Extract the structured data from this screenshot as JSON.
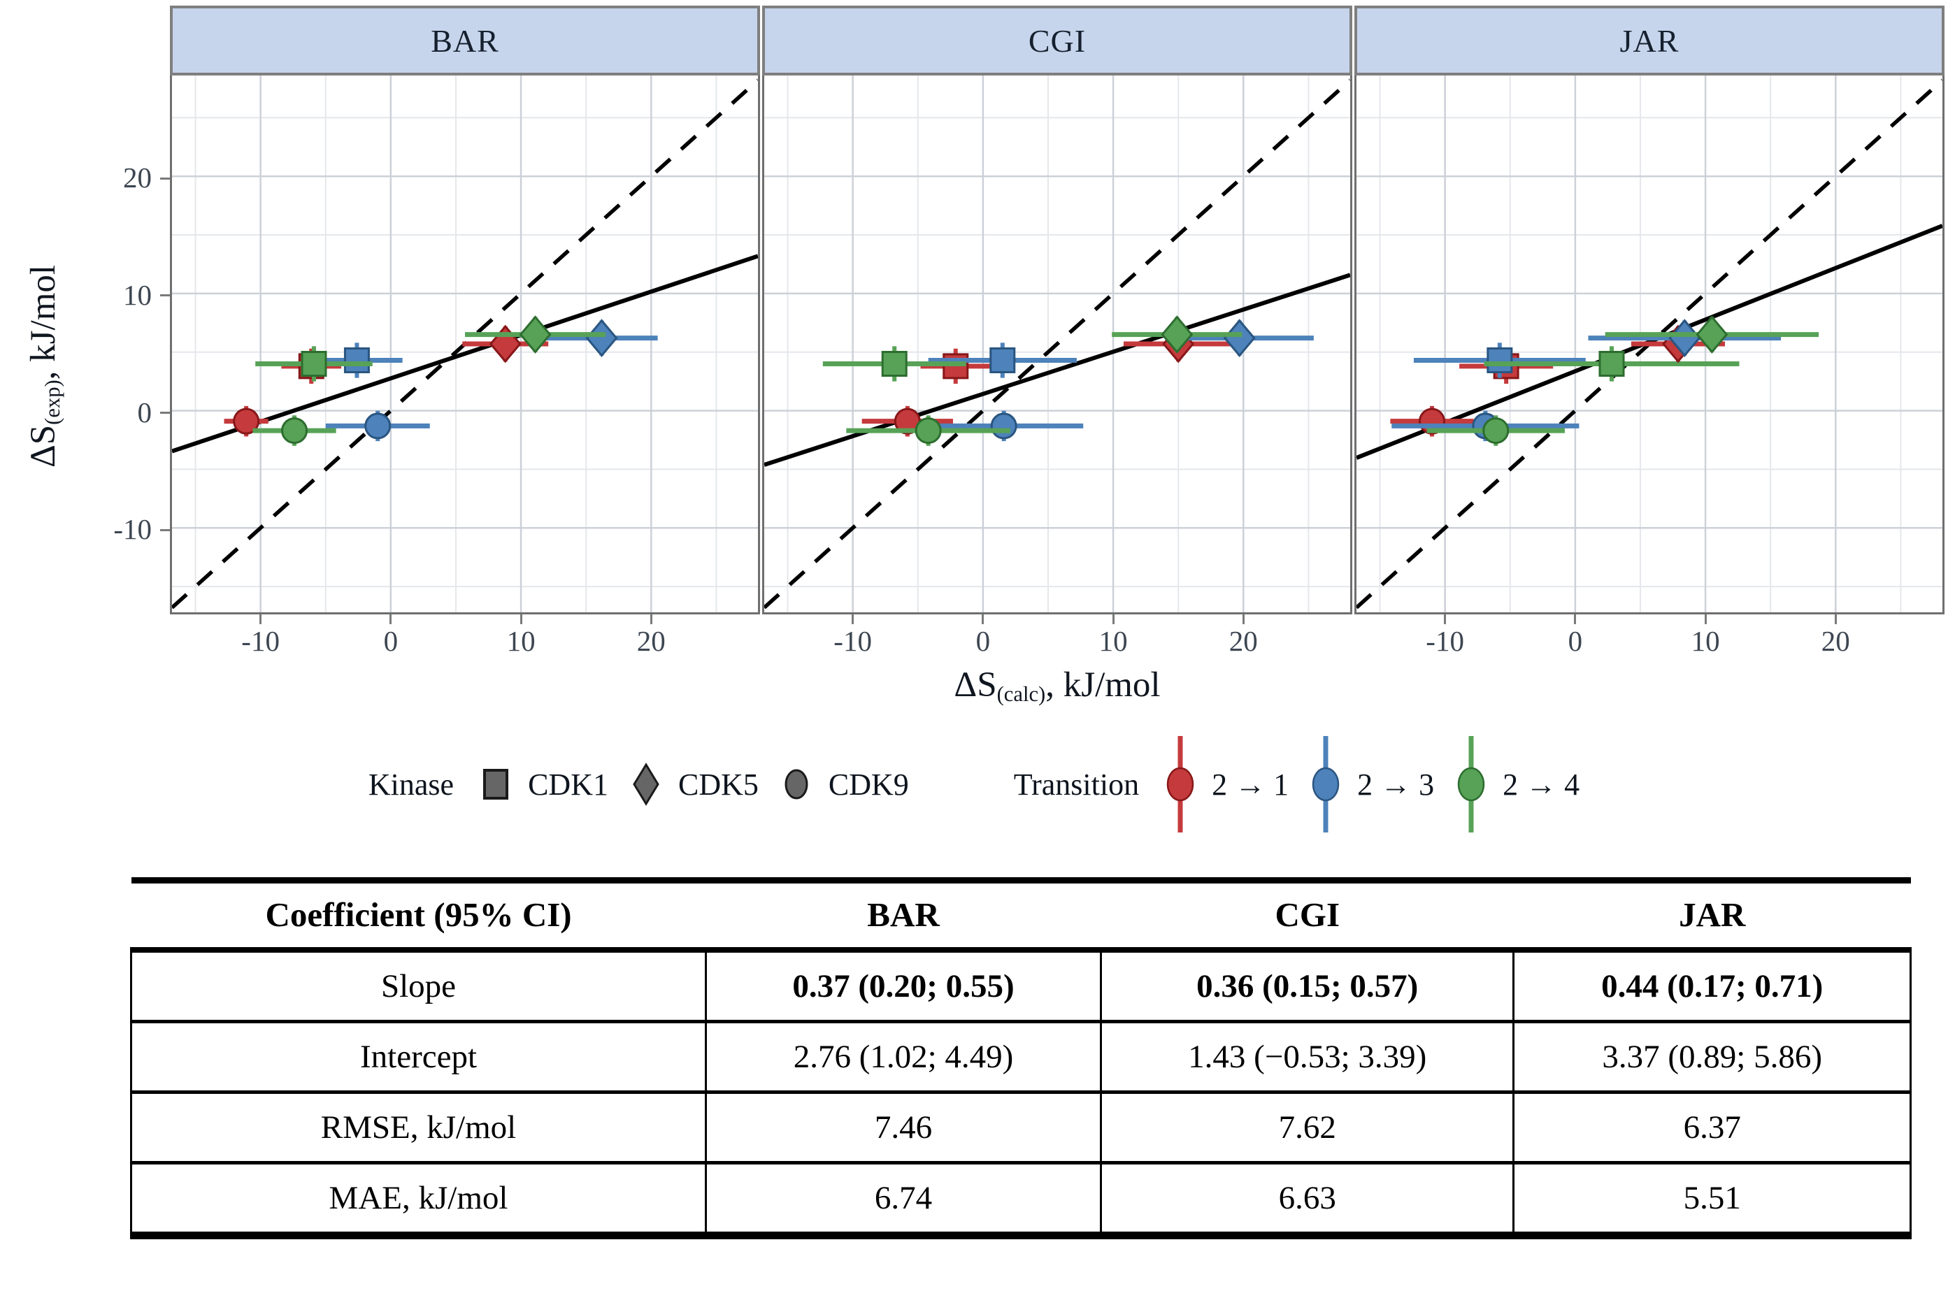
{
  "chart_data": {
    "type": "scatter",
    "x_label": {
      "main": "ΔS",
      "sub": "(calc)",
      "rest": ", kJ/mol"
    },
    "y_label": {
      "main": "ΔS",
      "sub": "(exp)",
      "rest": ", kJ/mol"
    },
    "x_range": [
      -16.8,
      28.2
    ],
    "y_range": [
      -17.2,
      28.6
    ],
    "x_ticks": [
      -10,
      0,
      10,
      20
    ],
    "y_ticks": [
      20,
      10,
      0,
      -10
    ],
    "grid_minor": [
      -15,
      -5,
      5,
      15,
      25
    ],
    "grid_major": [
      -10,
      0,
      10,
      20
    ],
    "legend_position": "bottom",
    "grid": "on",
    "identity_line": "y = x (dashed)",
    "colors": {
      "panel_header_fill": "#c6d5ec",
      "panel_border": "#6f6f6f",
      "grid_minor": "#e4e7eb",
      "grid_major": "#ccd1d8",
      "line_black": "#000000",
      "kinase_gray_fill": "#666666",
      "kinase_gray_stroke": "#1a1a1a"
    },
    "kinase_markers": {
      "CDK1": "square",
      "CDK5": "diamond",
      "CDK9": "circle"
    },
    "transition_colors": {
      "2 → 1": {
        "fill": "#c53a3c",
        "stroke": "#871719"
      },
      "2 → 3": {
        "fill": "#4d82ba",
        "stroke": "#2a5580"
      },
      "2 → 4": {
        "fill": "#57a257",
        "stroke": "#2d6d2f"
      }
    },
    "panels": [
      {
        "label": "BAR",
        "fit": {
          "slope": 0.37,
          "intercept": 2.76
        },
        "points": [
          {
            "kinase": "CDK1",
            "transition": "2 → 1",
            "x": -6.1,
            "y": 3.8,
            "xerr": 2.3,
            "yerr": 1.5
          },
          {
            "kinase": "CDK1",
            "transition": "2 → 3",
            "x": -2.6,
            "y": 4.3,
            "xerr": 3.5,
            "yerr": 1.5
          },
          {
            "kinase": "CDK1",
            "transition": "2 → 4",
            "x": -5.9,
            "y": 4.0,
            "xerr": 4.5,
            "yerr": 1.5
          },
          {
            "kinase": "CDK5",
            "transition": "2 → 1",
            "x": 8.8,
            "y": 5.7,
            "xerr": 3.3,
            "yerr": 1.5
          },
          {
            "kinase": "CDK5",
            "transition": "2 → 3",
            "x": 16.2,
            "y": 6.2,
            "xerr": 4.3,
            "yerr": 1.5
          },
          {
            "kinase": "CDK5",
            "transition": "2 → 4",
            "x": 11.1,
            "y": 6.5,
            "xerr": 5.4,
            "yerr": 1.5
          },
          {
            "kinase": "CDK9",
            "transition": "2 → 1",
            "x": -11.1,
            "y": -0.9,
            "xerr": 1.7,
            "yerr": 1.3
          },
          {
            "kinase": "CDK9",
            "transition": "2 → 3",
            "x": -1.0,
            "y": -1.3,
            "xerr": 4.0,
            "yerr": 1.3
          },
          {
            "kinase": "CDK9",
            "transition": "2 → 4",
            "x": -7.4,
            "y": -1.7,
            "xerr": 3.2,
            "yerr": 1.3
          }
        ]
      },
      {
        "label": "CGI",
        "fit": {
          "slope": 0.36,
          "intercept": 1.43
        },
        "points": [
          {
            "kinase": "CDK1",
            "transition": "2 → 1",
            "x": -2.1,
            "y": 3.8,
            "xerr": 2.7,
            "yerr": 1.5
          },
          {
            "kinase": "CDK1",
            "transition": "2 → 3",
            "x": 1.5,
            "y": 4.3,
            "xerr": 5.7,
            "yerr": 1.5
          },
          {
            "kinase": "CDK1",
            "transition": "2 → 4",
            "x": -6.8,
            "y": 4.0,
            "xerr": 5.5,
            "yerr": 1.5
          },
          {
            "kinase": "CDK5",
            "transition": "2 → 1",
            "x": 15.0,
            "y": 5.7,
            "xerr": 4.2,
            "yerr": 1.5
          },
          {
            "kinase": "CDK5",
            "transition": "2 → 3",
            "x": 19.7,
            "y": 6.2,
            "xerr": 5.7,
            "yerr": 1.5
          },
          {
            "kinase": "CDK5",
            "transition": "2 → 4",
            "x": 14.9,
            "y": 6.5,
            "xerr": 5.0,
            "yerr": 1.5
          },
          {
            "kinase": "CDK9",
            "transition": "2 → 1",
            "x": -5.8,
            "y": -0.9,
            "xerr": 3.5,
            "yerr": 1.3
          },
          {
            "kinase": "CDK9",
            "transition": "2 → 3",
            "x": 1.6,
            "y": -1.3,
            "xerr": 6.1,
            "yerr": 1.3
          },
          {
            "kinase": "CDK9",
            "transition": "2 → 4",
            "x": -4.2,
            "y": -1.7,
            "xerr": 6.3,
            "yerr": 1.3
          }
        ]
      },
      {
        "label": "JAR",
        "fit": {
          "slope": 0.44,
          "intercept": 3.37
        },
        "points": [
          {
            "kinase": "CDK1",
            "transition": "2 → 1",
            "x": -5.3,
            "y": 3.8,
            "xerr": 3.6,
            "yerr": 1.5
          },
          {
            "kinase": "CDK1",
            "transition": "2 → 3",
            "x": -5.8,
            "y": 4.3,
            "xerr": 6.6,
            "yerr": 1.5
          },
          {
            "kinase": "CDK1",
            "transition": "2 → 4",
            "x": 2.8,
            "y": 4.0,
            "xerr": 9.8,
            "yerr": 1.5
          },
          {
            "kinase": "CDK5",
            "transition": "2 → 1",
            "x": 7.9,
            "y": 5.7,
            "xerr": 3.6,
            "yerr": 1.5
          },
          {
            "kinase": "CDK5",
            "transition": "2 → 3",
            "x": 8.4,
            "y": 6.2,
            "xerr": 7.4,
            "yerr": 1.5
          },
          {
            "kinase": "CDK5",
            "transition": "2 → 4",
            "x": 10.5,
            "y": 6.5,
            "xerr": 8.2,
            "yerr": 1.5
          },
          {
            "kinase": "CDK9",
            "transition": "2 → 1",
            "x": -11.0,
            "y": -0.9,
            "xerr": 3.2,
            "yerr": 1.3
          },
          {
            "kinase": "CDK9",
            "transition": "2 → 3",
            "x": -6.9,
            "y": -1.3,
            "xerr": 7.2,
            "yerr": 1.3
          },
          {
            "kinase": "CDK9",
            "transition": "2 → 4",
            "x": -6.1,
            "y": -1.7,
            "xerr": 5.3,
            "yerr": 1.3
          }
        ]
      }
    ]
  },
  "legend": {
    "kinase_title": "Kinase",
    "kinase_items": [
      "CDK1",
      "CDK5",
      "CDK9"
    ],
    "transition_title": "Transition",
    "transition_items": [
      "2 → 1",
      "2 → 3",
      "2 → 4"
    ]
  },
  "table": {
    "headers": [
      "Coefficient (95% CI)",
      "BAR",
      "CGI",
      "JAR"
    ],
    "rows": [
      {
        "label": "Slope",
        "values": [
          "0.37 (0.20; 0.55)",
          "0.36 (0.15; 0.57)",
          "0.44 (0.17; 0.71)"
        ],
        "bold": true
      },
      {
        "label": "Intercept",
        "values": [
          "2.76 (1.02; 4.49)",
          "1.43 (−0.53; 3.39)",
          "3.37 (0.89; 5.86)"
        ],
        "bold": false
      },
      {
        "label": "RMSE, kJ/mol",
        "values": [
          "7.46",
          "7.62",
          "6.37"
        ],
        "bold": false
      },
      {
        "label": "MAE, kJ/mol",
        "values": [
          "6.74",
          "6.63",
          "5.51"
        ],
        "bold": false
      }
    ]
  }
}
